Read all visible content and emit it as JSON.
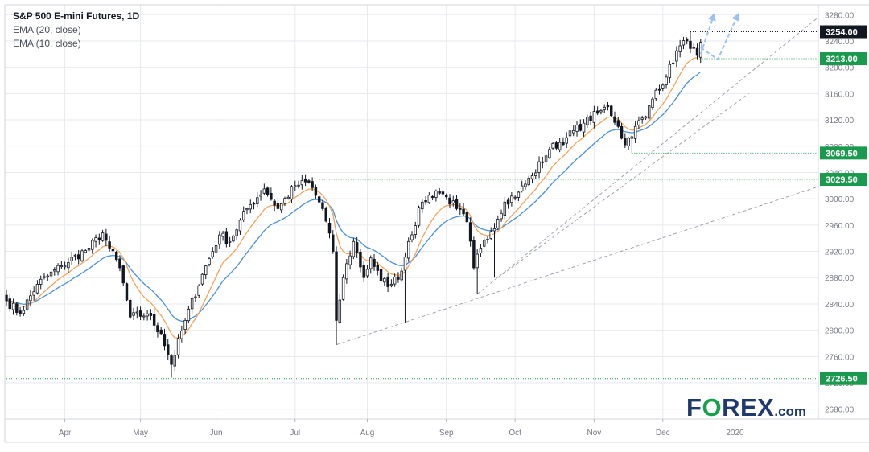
{
  "legend": {
    "title": "S&P 500 E-mini Futures, 1D",
    "ema1": "EMA (20, close)",
    "ema2": "EMA (10, close)"
  },
  "logo": {
    "brand_pre": "F",
    "brand_o": "O",
    "brand_post": "REX",
    "suffix": ".com"
  },
  "chart_data": {
    "type": "candlestick",
    "title": "S&P 500 E-mini Futures, 1D",
    "timeframe": "1D",
    "ylim": [
      2665,
      3295
    ],
    "y_ticks": [
      2680,
      2720,
      2760,
      2800,
      2840,
      2880,
      2920,
      2960,
      3000,
      3040,
      3080,
      3120,
      3160,
      3200,
      3240,
      3280
    ],
    "x_ticks": [
      "Apr",
      "May",
      "Jun",
      "Jul",
      "Aug",
      "Sep",
      "Oct",
      "Nov",
      "Dec",
      "2020"
    ],
    "x_tick_session_index": [
      17,
      39,
      61,
      84,
      105,
      128,
      148,
      171,
      191,
      212
    ],
    "price_levels": [
      {
        "label": "3254.00",
        "value": 3254,
        "color": "#131722",
        "from_index": 199
      },
      {
        "label": "3213.00",
        "value": 3213,
        "color": "#1a9a4c",
        "from_index": 201
      },
      {
        "label": "3069.50",
        "value": 3069.5,
        "color": "#1a9a4c",
        "from_index": 182
      },
      {
        "label": "3029.50",
        "value": 3029.5,
        "color": "#1a9a4c",
        "from_index": 91
      },
      {
        "label": "2726.50",
        "value": 2726.5,
        "color": "#1a9a4c",
        "from_index": 0
      }
    ],
    "trendlines": [
      {
        "from": {
          "index": 96,
          "value": 2778
        },
        "to": {
          "index": 236,
          "value": 3018
        }
      },
      {
        "from": {
          "index": 137,
          "value": 2855
        },
        "to": {
          "index": 236,
          "value": 3275
        }
      },
      {
        "from": {
          "index": 143,
          "value": 2880
        },
        "to": {
          "index": 216,
          "value": 3160
        }
      }
    ],
    "projection_arrows": [
      {
        "points": [
          {
            "index": 202,
            "value": 3220
          },
          {
            "index": 206,
            "value": 3282
          }
        ]
      },
      {
        "points": [
          {
            "index": 202,
            "value": 3230
          },
          {
            "index": 207,
            "value": 3212
          },
          {
            "index": 213,
            "value": 3282
          }
        ]
      }
    ],
    "anchors": [
      {
        "index": 0,
        "value": 2845
      },
      {
        "index": 4,
        "value": 2825
      },
      {
        "index": 9,
        "value": 2870
      },
      {
        "index": 16,
        "value": 2898
      },
      {
        "index": 24,
        "value": 2925
      },
      {
        "index": 28,
        "value": 2948
      },
      {
        "index": 30,
        "value": 2925
      },
      {
        "index": 33,
        "value": 2895
      },
      {
        "index": 36,
        "value": 2820
      },
      {
        "index": 41,
        "value": 2825
      },
      {
        "index": 45,
        "value": 2795
      },
      {
        "index": 48,
        "value": 2748
      },
      {
        "index": 52,
        "value": 2815
      },
      {
        "index": 57,
        "value": 2885
      },
      {
        "index": 62,
        "value": 2945
      },
      {
        "index": 65,
        "value": 2935
      },
      {
        "index": 70,
        "value": 2985
      },
      {
        "index": 75,
        "value": 3015
      },
      {
        "index": 79,
        "value": 2985
      },
      {
        "index": 84,
        "value": 3020
      },
      {
        "index": 88,
        "value": 3025
      },
      {
        "index": 92,
        "value": 2985
      },
      {
        "index": 95,
        "value": 2920
      },
      {
        "index": 96,
        "value": 2815
      },
      {
        "index": 98,
        "value": 2880
      },
      {
        "index": 101,
        "value": 2935
      },
      {
        "index": 104,
        "value": 2880
      },
      {
        "index": 106,
        "value": 2910
      },
      {
        "index": 109,
        "value": 2875
      },
      {
        "index": 112,
        "value": 2870
      },
      {
        "index": 115,
        "value": 2890
      },
      {
        "index": 117,
        "value": 2935
      },
      {
        "index": 121,
        "value": 2995
      },
      {
        "index": 125,
        "value": 3012
      },
      {
        "index": 128,
        "value": 3003
      },
      {
        "index": 131,
        "value": 2985
      },
      {
        "index": 134,
        "value": 2965
      },
      {
        "index": 136,
        "value": 2895
      },
      {
        "index": 138,
        "value": 2925
      },
      {
        "index": 141,
        "value": 2950
      },
      {
        "index": 145,
        "value": 2995
      },
      {
        "index": 149,
        "value": 3010
      },
      {
        "index": 153,
        "value": 3035
      },
      {
        "index": 158,
        "value": 3075
      },
      {
        "index": 163,
        "value": 3093
      },
      {
        "index": 168,
        "value": 3115
      },
      {
        "index": 172,
        "value": 3130
      },
      {
        "index": 175,
        "value": 3140
      },
      {
        "index": 178,
        "value": 3110
      },
      {
        "index": 180,
        "value": 3082
      },
      {
        "index": 183,
        "value": 3110
      },
      {
        "index": 186,
        "value": 3125
      },
      {
        "index": 189,
        "value": 3165
      },
      {
        "index": 192,
        "value": 3185
      },
      {
        "index": 195,
        "value": 3225
      },
      {
        "index": 198,
        "value": 3240
      },
      {
        "index": 200,
        "value": 3230
      },
      {
        "index": 201,
        "value": 3218
      },
      {
        "index": 202,
        "value": 3238
      }
    ],
    "series": [
      {
        "name": "EMA (20, close)",
        "color": "#4a90d9",
        "period": 20
      },
      {
        "name": "EMA (10, close)",
        "color": "#f2a359",
        "period": 10
      }
    ],
    "colors": {
      "up": "#ffffff",
      "down": "#131722",
      "wick": "#131722",
      "grid": "#e7eaee",
      "axis_text": "#777b86",
      "level_line": "#1a9a4c",
      "trend": "#a0a3ab",
      "arrow": "#9ec0ef"
    }
  }
}
